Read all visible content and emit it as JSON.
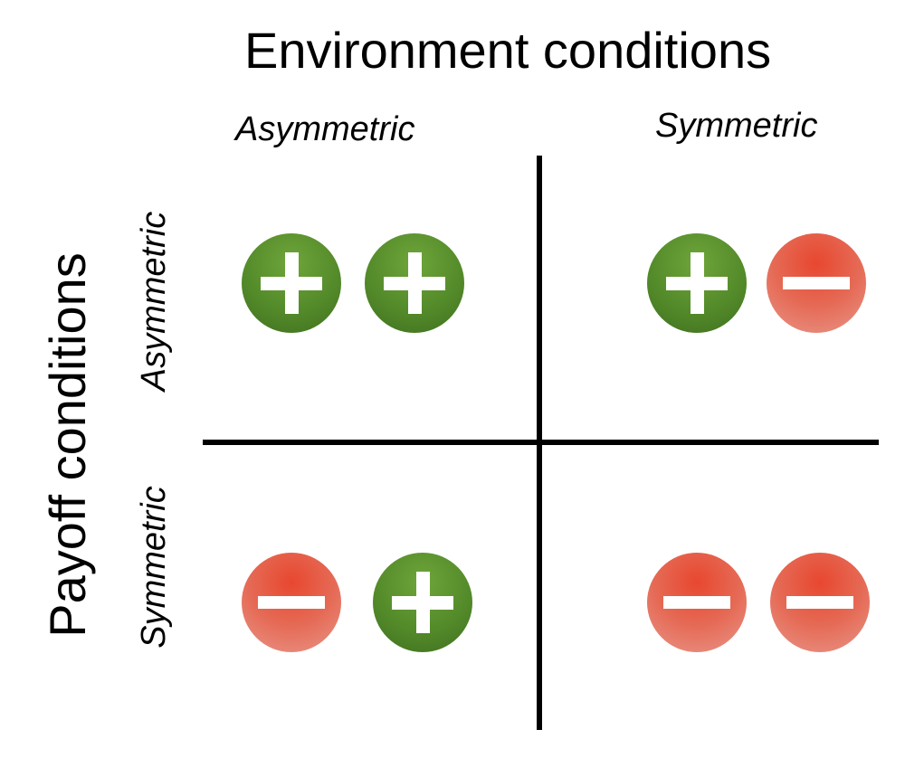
{
  "title": "Environment conditions",
  "columns": {
    "asymmetric": "Asymmetric",
    "symmetric": "Symmetric"
  },
  "axis_title": "Payoff conditions",
  "rows": {
    "asymmetric": "Asymmetric",
    "symmetric": "Symmetric"
  },
  "cells": {
    "asym_asym": [
      "plus",
      "plus"
    ],
    "asym_sym": [
      "plus",
      "minus"
    ],
    "sym_asym": [
      "minus",
      "plus"
    ],
    "sym_sym": [
      "minus",
      "minus"
    ]
  },
  "colors": {
    "plus": "#548b2a",
    "minus": "#e56a55"
  }
}
